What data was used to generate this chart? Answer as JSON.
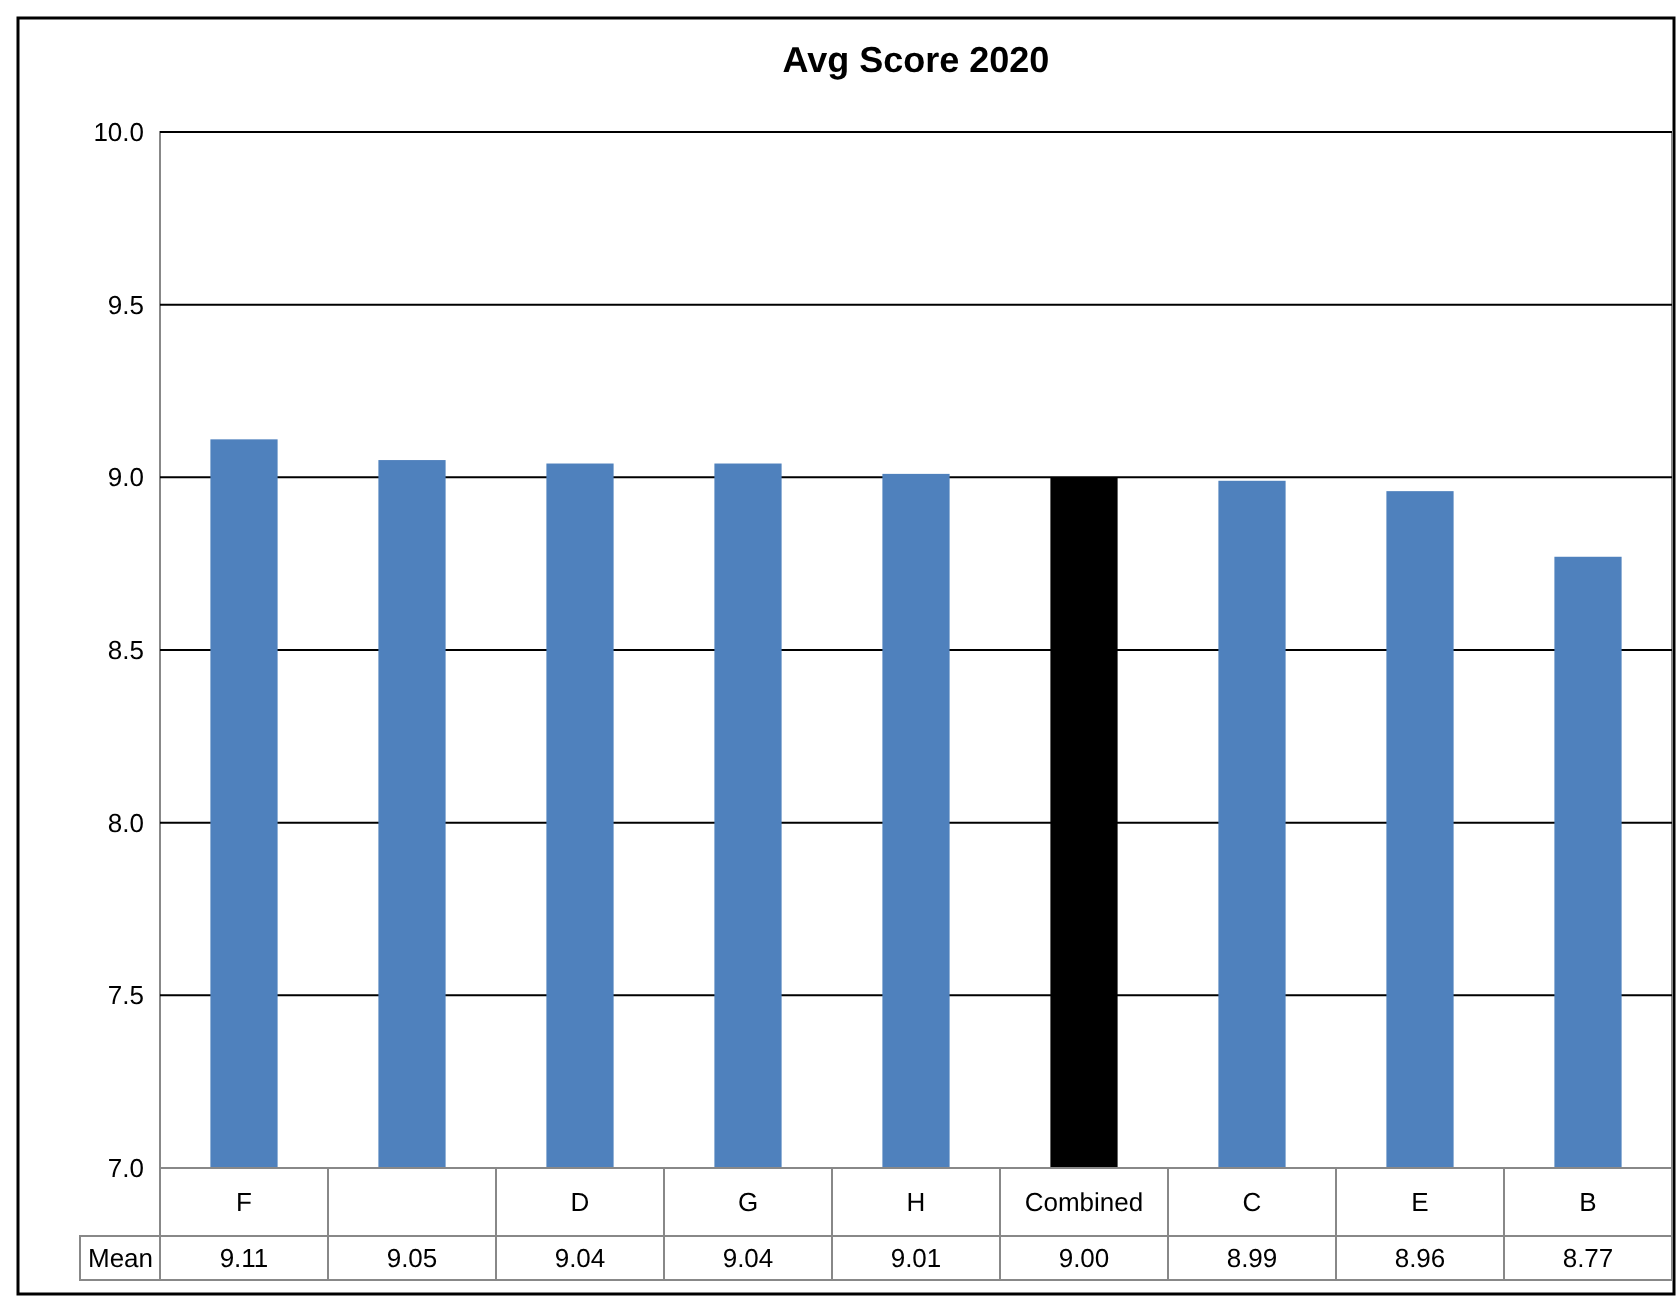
{
  "chart_data": {
    "type": "bar",
    "title": "Avg Score 2020",
    "categories": [
      "F",
      null,
      "D",
      "G",
      "H",
      "Combined",
      "C",
      "E",
      "B"
    ],
    "values": [
      9.11,
      9.05,
      9.04,
      9.04,
      9.01,
      9.0,
      8.99,
      8.96,
      8.77
    ],
    "colors": [
      "#4f81bd",
      "#4f81bd",
      "#4f81bd",
      "#4f81bd",
      "#4f81bd",
      "#000000",
      "#4f81bd",
      "#4f81bd",
      "#4f81bd"
    ],
    "value_labels": [
      "9.11",
      "9.05",
      "9.04",
      "9.04",
      "9.01",
      "9.00",
      "8.99",
      "8.96",
      "8.77"
    ],
    "annotations": [
      "Mean"
    ],
    "ylim": [
      7,
      10
    ],
    "yticks": [
      {
        "value": 7,
        "label": "7.0"
      },
      {
        "value": 7.5,
        "label": "7.5"
      },
      {
        "value": 8,
        "label": "8.0"
      },
      {
        "value": 8.5,
        "label": "8.5"
      },
      {
        "value": 9,
        "label": "9.0"
      },
      {
        "value": 9.5,
        "label": "9.5"
      },
      {
        "value": 10,
        "label": "10.0"
      }
    ],
    "grid": "y"
  }
}
